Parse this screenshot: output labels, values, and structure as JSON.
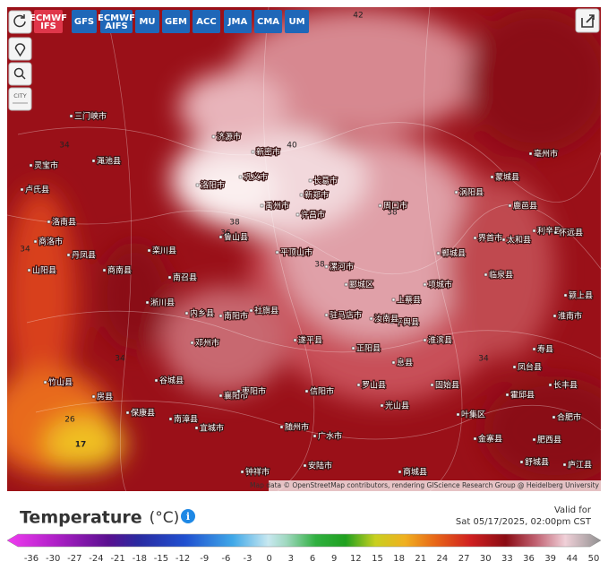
{
  "toolbar": {
    "models": [
      "ECMWF IFS",
      "GFS",
      "ECMWF AIFS",
      "MU",
      "GEM",
      "ACC",
      "JMA",
      "CMA",
      "UM"
    ],
    "city_button": "CITY"
  },
  "map": {
    "labels": [
      "洛南县",
      "商洛市",
      "丹凤县",
      "山阳县",
      "商南县",
      "淅川县",
      "内乡县",
      "南阳市",
      "社旗县",
      "邓州市",
      "平顶山市",
      "漯河市",
      "驻马店市",
      "信阳市",
      "罗山县",
      "光山县",
      "正阳县",
      "襄阳市",
      "随州市",
      "广水市",
      "安陆市",
      "钟祥市",
      "竹山县",
      "房县",
      "保康县",
      "南漳县",
      "谷城县",
      "宜城市",
      "枣阳市",
      "界首市",
      "太和县",
      "临泉县",
      "颍上县",
      "合肥市",
      "肥西县",
      "舒城县",
      "庐江县",
      "金寨县",
      "霍邱县",
      "叶集区",
      "固始县",
      "商城县",
      "济源市",
      "洛阳市",
      "许昌市",
      "新郑市",
      "巩义市",
      "长葛市",
      "周口市",
      "淮滨县",
      "息县",
      "平舆县",
      "汝南县",
      "遂平县",
      "南召县",
      "鲁山县",
      "栾川县",
      "卢氏县",
      "灵宝市",
      "三门峡市",
      "渑池县",
      "新密市",
      "禹州市",
      "郾城区",
      "上蔡县",
      "项城市",
      "郸城县",
      "鹿邑县",
      "亳州市",
      "涡阳县",
      "利辛县",
      "蒙城县",
      "怀远县",
      "寿县",
      "长丰县",
      "凤台县",
      "淮南市"
    ],
    "contours": [
      17,
      26,
      34,
      34,
      36,
      38,
      38,
      38,
      40,
      42,
      34,
      34
    ],
    "attribution": "Map data © OpenStreetMap contributors, rendering GIScience Research Group @ Heidelberg University"
  },
  "legend": {
    "title": "Temperature",
    "unit": "(°C)",
    "valid_label": "Valid for",
    "valid_time": "Sat 05/17/2025, 02:00pm CST",
    "ticks": [
      -36,
      -30,
      -27,
      -24,
      -21,
      -18,
      -15,
      -12,
      -9,
      -6,
      -3,
      0,
      3,
      6,
      9,
      12,
      15,
      18,
      21,
      24,
      27,
      30,
      33,
      36,
      39,
      44,
      50
    ]
  }
}
